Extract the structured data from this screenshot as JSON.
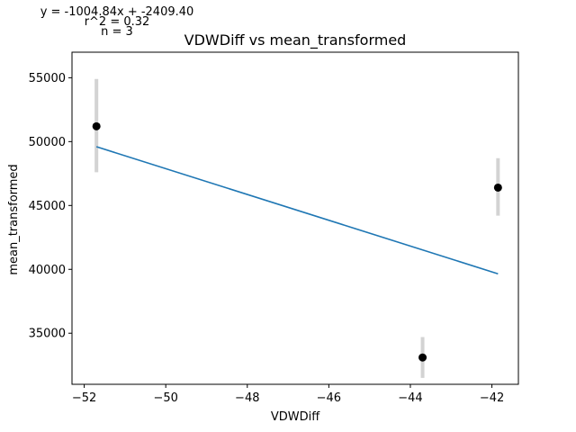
{
  "chart_data": {
    "type": "scatter",
    "title": "VDWDiff vs mean_transformed",
    "xlabel": "VDWDiff",
    "ylabel": "mean_transformed",
    "xlim": [
      -52.3,
      -41.35
    ],
    "ylim": [
      31000,
      57000
    ],
    "x_ticks": [
      -52,
      -50,
      -48,
      -46,
      -44,
      -42
    ],
    "x_tick_labels": [
      "−52",
      "−50",
      "−48",
      "−46",
      "−44",
      "−42"
    ],
    "y_ticks": [
      35000,
      40000,
      45000,
      50000,
      55000
    ],
    "y_tick_labels": [
      "35000",
      "40000",
      "45000",
      "50000",
      "55000"
    ],
    "points": [
      {
        "x": -51.7,
        "y": 51200,
        "err_low": 47600,
        "err_high": 54900
      },
      {
        "x": -43.7,
        "y": 33100,
        "err_low": 31500,
        "err_high": 34700
      },
      {
        "x": -41.85,
        "y": 46400,
        "err_low": 44200,
        "err_high": 48700
      }
    ],
    "fit_line": {
      "x": [
        -51.7,
        -41.85
      ],
      "y": [
        49600,
        39650
      ]
    },
    "annotations": {
      "equation": "y = -1004.84x + -2409.40",
      "r2": "r^2 = 0.32",
      "n": "n = 3"
    },
    "grid": false,
    "colors": {
      "points": "#000000",
      "fit_line": "#1f77b4",
      "error_bars": "#d3d3d3",
      "axes": "#000000"
    }
  }
}
